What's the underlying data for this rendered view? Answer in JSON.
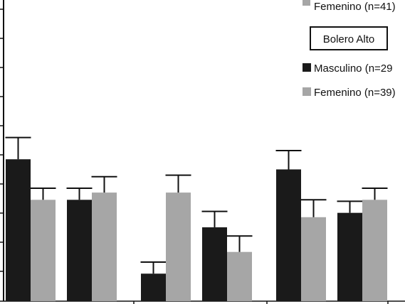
{
  "chart_data": {
    "type": "bar",
    "legend": {
      "groups": [
        {
          "title": "",
          "items": [
            {
              "label": "Femenino (n=41)",
              "color": "#a6a6a6"
            }
          ]
        },
        {
          "title": "Bolero Alto",
          "items": [
            {
              "label": "Masculino (n=29",
              "color": "#1a1a1a"
            },
            {
              "label": "Femenino (n=39)",
              "color": "#a6a6a6"
            }
          ]
        }
      ],
      "placement": "top-right"
    },
    "series": [
      {
        "color": "#1a1a1a",
        "values": [
          4.9,
          3.5,
          0.95,
          2.55,
          4.55,
          3.05
        ],
        "errors": [
          0.75,
          0.4,
          0.4,
          0.55,
          0.65,
          0.4
        ]
      },
      {
        "color": "#a6a6a6",
        "values": [
          3.5,
          3.75,
          3.75,
          1.7,
          2.9,
          3.5
        ],
        "errors": [
          0.4,
          0.55,
          0.6,
          0.55,
          0.6,
          0.4
        ]
      }
    ],
    "group_structure": [
      2,
      2,
      2
    ],
    "ylim": [
      0,
      10.4
    ],
    "grid": false
  }
}
